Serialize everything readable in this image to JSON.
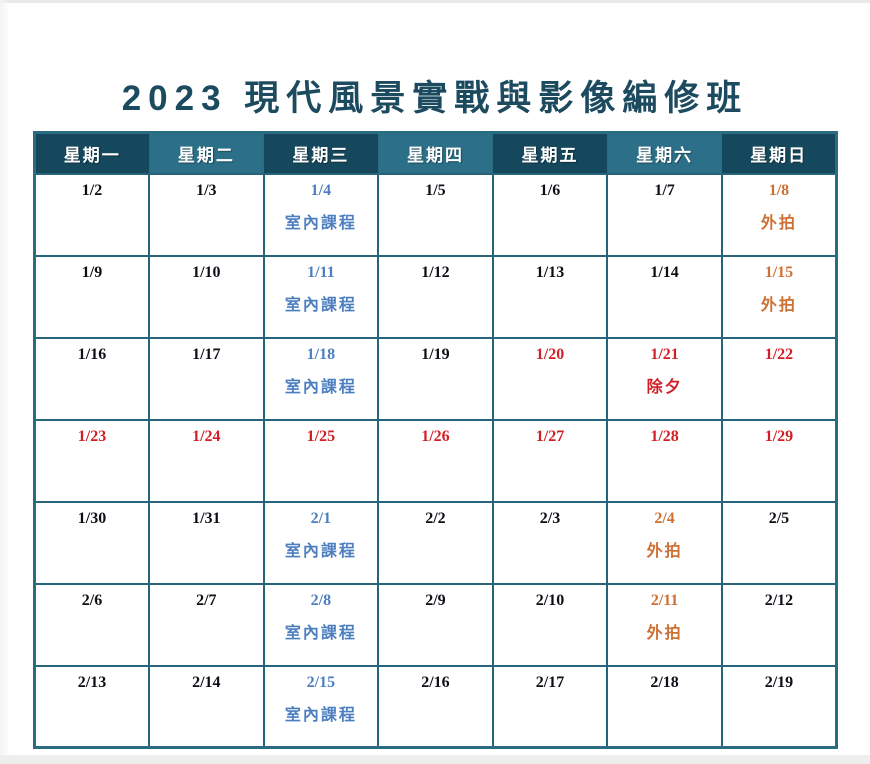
{
  "title": "2023 現代風景實戰與影像編修班",
  "colors": {
    "title": "#1c4a5f",
    "header_dark": "#16485d",
    "header_light": "#2b7088",
    "grid_border": "#266579",
    "date_normal": "#0d0f16",
    "indoor_blue": "#4d7fc0",
    "outdoor_orange": "#cd7033",
    "holiday_red": "#d21f26"
  },
  "weekdays": [
    {
      "key": "mon",
      "label": "星期一",
      "shade": "dark"
    },
    {
      "key": "tue",
      "label": "星期二",
      "shade": "light"
    },
    {
      "key": "wed",
      "label": "星期三",
      "shade": "dark"
    },
    {
      "key": "thu",
      "label": "星期四",
      "shade": "light"
    },
    {
      "key": "fri",
      "label": "星期五",
      "shade": "dark"
    },
    {
      "key": "sat",
      "label": "星期六",
      "shade": "light"
    },
    {
      "key": "sun",
      "label": "星期日",
      "shade": "dark"
    }
  ],
  "legend_meanings": {
    "indoor": "室內課程",
    "outdoor": "外拍",
    "holiday_example": "除夕"
  },
  "rows": [
    [
      {
        "date": "1/2",
        "label": "",
        "type": "normal"
      },
      {
        "date": "1/3",
        "label": "",
        "type": "normal"
      },
      {
        "date": "1/4",
        "label": "室內課程",
        "type": "indoor"
      },
      {
        "date": "1/5",
        "label": "",
        "type": "normal"
      },
      {
        "date": "1/6",
        "label": "",
        "type": "normal"
      },
      {
        "date": "1/7",
        "label": "",
        "type": "normal"
      },
      {
        "date": "1/8",
        "label": "外拍",
        "type": "outdoor"
      }
    ],
    [
      {
        "date": "1/9",
        "label": "",
        "type": "normal"
      },
      {
        "date": "1/10",
        "label": "",
        "type": "normal"
      },
      {
        "date": "1/11",
        "label": "室內課程",
        "type": "indoor"
      },
      {
        "date": "1/12",
        "label": "",
        "type": "normal"
      },
      {
        "date": "1/13",
        "label": "",
        "type": "normal"
      },
      {
        "date": "1/14",
        "label": "",
        "type": "normal"
      },
      {
        "date": "1/15",
        "label": "外拍",
        "type": "outdoor"
      }
    ],
    [
      {
        "date": "1/16",
        "label": "",
        "type": "normal"
      },
      {
        "date": "1/17",
        "label": "",
        "type": "normal"
      },
      {
        "date": "1/18",
        "label": "室內課程",
        "type": "indoor"
      },
      {
        "date": "1/19",
        "label": "",
        "type": "normal"
      },
      {
        "date": "1/20",
        "label": "",
        "type": "holiday"
      },
      {
        "date": "1/21",
        "label": "除夕",
        "type": "holiday"
      },
      {
        "date": "1/22",
        "label": "",
        "type": "holiday"
      }
    ],
    [
      {
        "date": "1/23",
        "label": "",
        "type": "holiday"
      },
      {
        "date": "1/24",
        "label": "",
        "type": "holiday"
      },
      {
        "date": "1/25",
        "label": "",
        "type": "holiday"
      },
      {
        "date": "1/26",
        "label": "",
        "type": "holiday"
      },
      {
        "date": "1/27",
        "label": "",
        "type": "holiday"
      },
      {
        "date": "1/28",
        "label": "",
        "type": "holiday"
      },
      {
        "date": "1/29",
        "label": "",
        "type": "holiday"
      }
    ],
    [
      {
        "date": "1/30",
        "label": "",
        "type": "normal"
      },
      {
        "date": "1/31",
        "label": "",
        "type": "normal"
      },
      {
        "date": "2/1",
        "label": "室內課程",
        "type": "indoor"
      },
      {
        "date": "2/2",
        "label": "",
        "type": "normal"
      },
      {
        "date": "2/3",
        "label": "",
        "type": "normal"
      },
      {
        "date": "2/4",
        "label": "外拍",
        "type": "outdoor"
      },
      {
        "date": "2/5",
        "label": "",
        "type": "normal"
      }
    ],
    [
      {
        "date": "2/6",
        "label": "",
        "type": "normal"
      },
      {
        "date": "2/7",
        "label": "",
        "type": "normal"
      },
      {
        "date": "2/8",
        "label": "室內課程",
        "type": "indoor"
      },
      {
        "date": "2/9",
        "label": "",
        "type": "normal"
      },
      {
        "date": "2/10",
        "label": "",
        "type": "normal"
      },
      {
        "date": "2/11",
        "label": "外拍",
        "type": "outdoor"
      },
      {
        "date": "2/12",
        "label": "",
        "type": "normal"
      }
    ],
    [
      {
        "date": "2/13",
        "label": "",
        "type": "normal"
      },
      {
        "date": "2/14",
        "label": "",
        "type": "normal"
      },
      {
        "date": "2/15",
        "label": "室內課程",
        "type": "indoor"
      },
      {
        "date": "2/16",
        "label": "",
        "type": "normal"
      },
      {
        "date": "2/17",
        "label": "",
        "type": "normal"
      },
      {
        "date": "2/18",
        "label": "",
        "type": "normal"
      },
      {
        "date": "2/19",
        "label": "",
        "type": "normal"
      }
    ]
  ]
}
